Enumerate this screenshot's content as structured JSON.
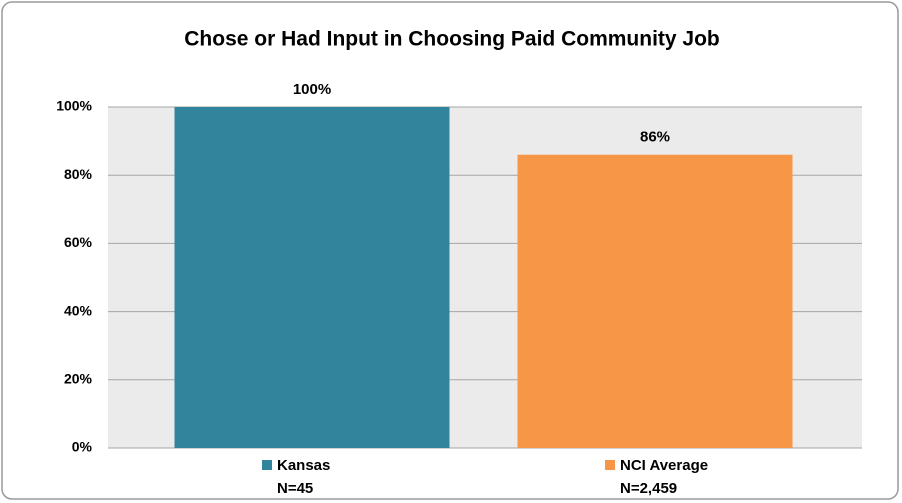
{
  "chart_data": {
    "type": "bar",
    "title": "Chose or Had Input in Choosing Paid Community Job",
    "categories": [
      "Kansas",
      "NCI Average"
    ],
    "sample_sizes": [
      "N=45",
      "N=2,459"
    ],
    "values": [
      100,
      86
    ],
    "value_labels": [
      "100%",
      "86%"
    ],
    "colors": [
      "#31849b",
      "#f79646"
    ],
    "ylim": [
      0,
      100
    ],
    "yticks": [
      {
        "value": 0,
        "label": "0%"
      },
      {
        "value": 20,
        "label": "20%"
      },
      {
        "value": 40,
        "label": "40%"
      },
      {
        "value": 60,
        "label": "60%"
      },
      {
        "value": 80,
        "label": "80%"
      },
      {
        "value": 100,
        "label": "100%"
      }
    ],
    "grid": true
  }
}
